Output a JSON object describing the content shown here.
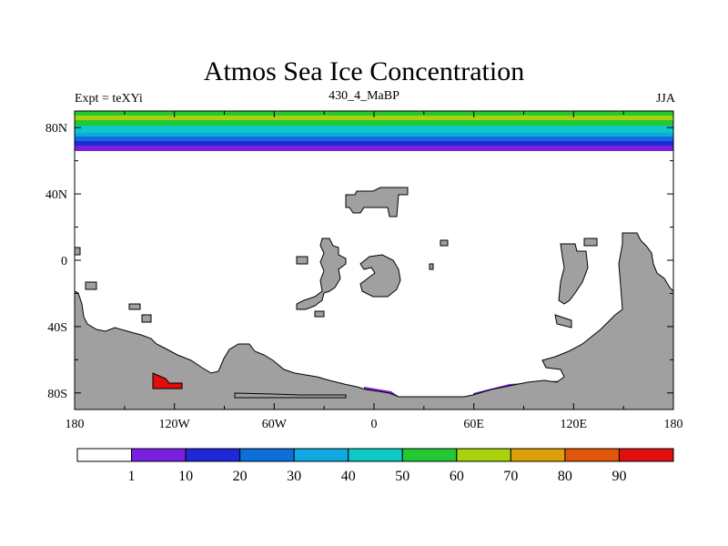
{
  "header": {
    "title": "Atmos Sea Ice Concentration",
    "left": "Expt = teXYi",
    "center": "430_4_MaBP",
    "right": "JJA"
  },
  "map": {
    "projection": "cylindrical equidistant",
    "lon_range": [
      180,
      540
    ],
    "lat_range": [
      -90,
      90
    ],
    "x_ticks": [
      "180",
      "120W",
      "60W",
      "0",
      "60E",
      "120E",
      "180"
    ],
    "y_ticks": [
      "80N",
      "40N",
      "0",
      "40S",
      "80S"
    ],
    "land_color": "#a0a0a0"
  },
  "colorbar": {
    "labels": [
      "1",
      "10",
      "20",
      "30",
      "40",
      "50",
      "60",
      "70",
      "80",
      "90"
    ],
    "colors": [
      "#ffffff",
      "#7a1fe0",
      "#1e28d6",
      "#0e6fd8",
      "#0fa8e0",
      "#0cc9c6",
      "#22c933",
      "#a8d20c",
      "#dca10a",
      "#e1560a",
      "#e20d0d"
    ]
  }
}
